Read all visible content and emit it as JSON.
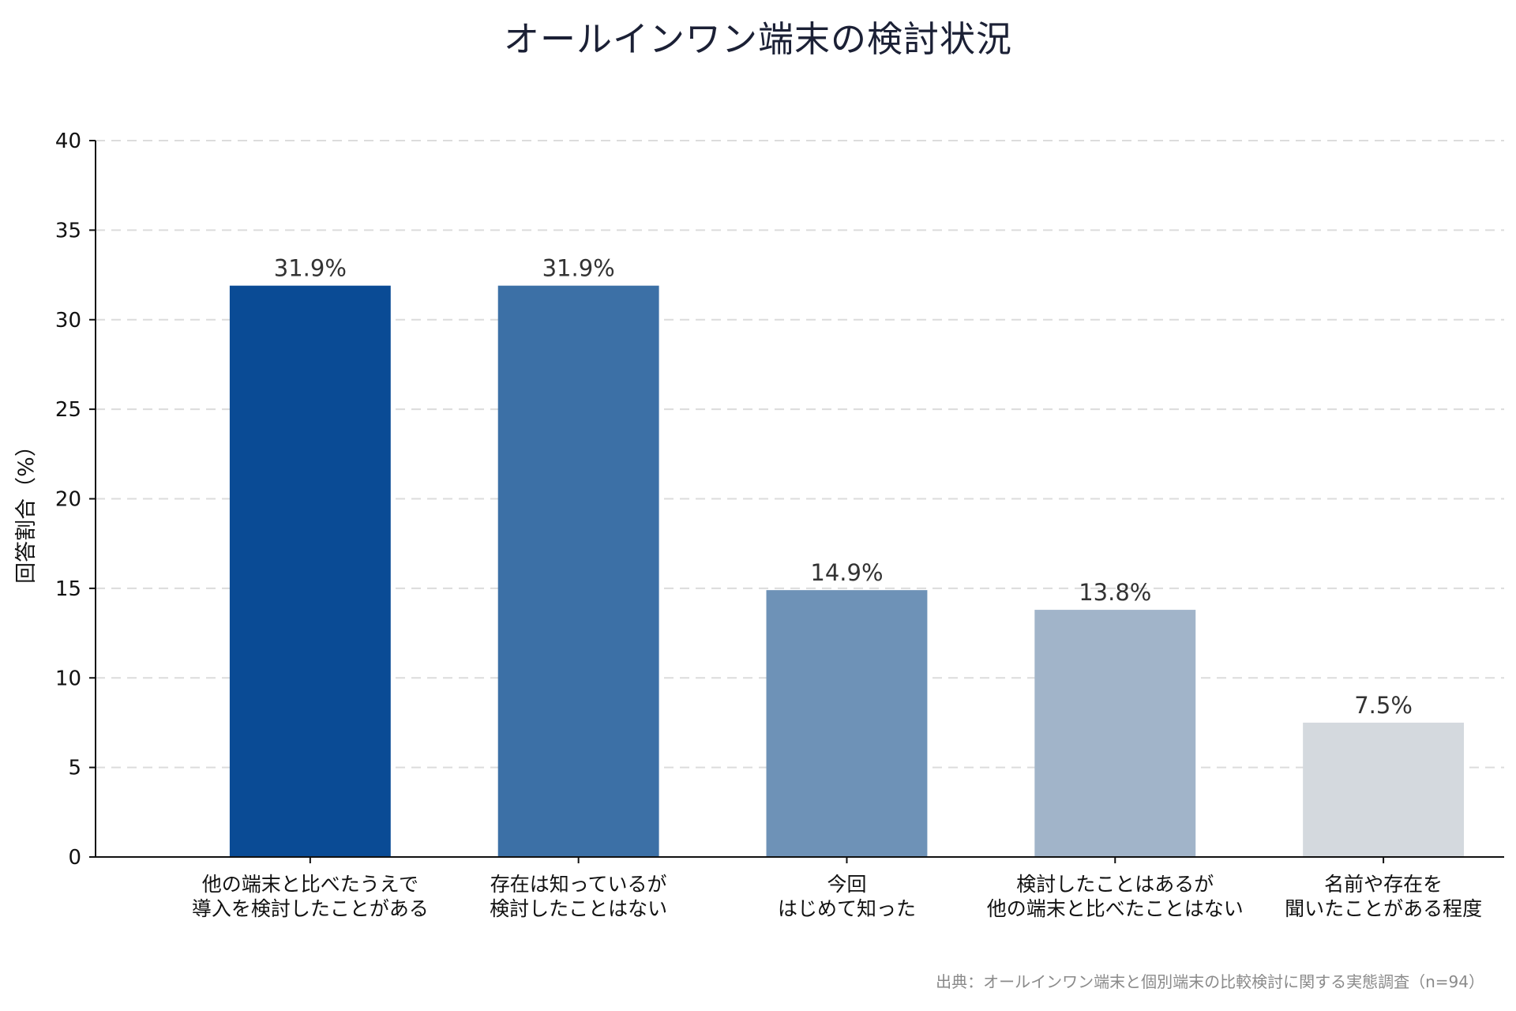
{
  "chart_data": {
    "type": "bar",
    "title": "オールインワン端末の検討状況",
    "ylabel": "回答割合（%）",
    "xlabel": "",
    "ylim": [
      0,
      40
    ],
    "yticks": [
      0,
      5,
      10,
      15,
      20,
      25,
      30,
      35,
      40
    ],
    "grid": "horizontal dashed",
    "categories": [
      [
        "他の端末と比べたうえで",
        "導入を検討したことがある"
      ],
      [
        "存在は知っているが",
        "検討したことはない"
      ],
      [
        "今回",
        "はじめて知った"
      ],
      [
        "検討したことはあるが",
        "他の端末と比べたことはない"
      ],
      [
        "名前や存在を",
        "聞いたことがある程度"
      ]
    ],
    "values": [
      31.9,
      31.9,
      14.9,
      13.8,
      7.5
    ],
    "value_labels": [
      "31.9%",
      "31.9%",
      "14.9%",
      "13.8%",
      "7.5%"
    ],
    "colors": [
      "#0a4b95",
      "#3c70a6",
      "#6e92b7",
      "#a1b4c9",
      "#d4d9de"
    ],
    "source": "出典：オールインワン端末と個別端末の比較検討に関する実態調査（n=94）"
  }
}
